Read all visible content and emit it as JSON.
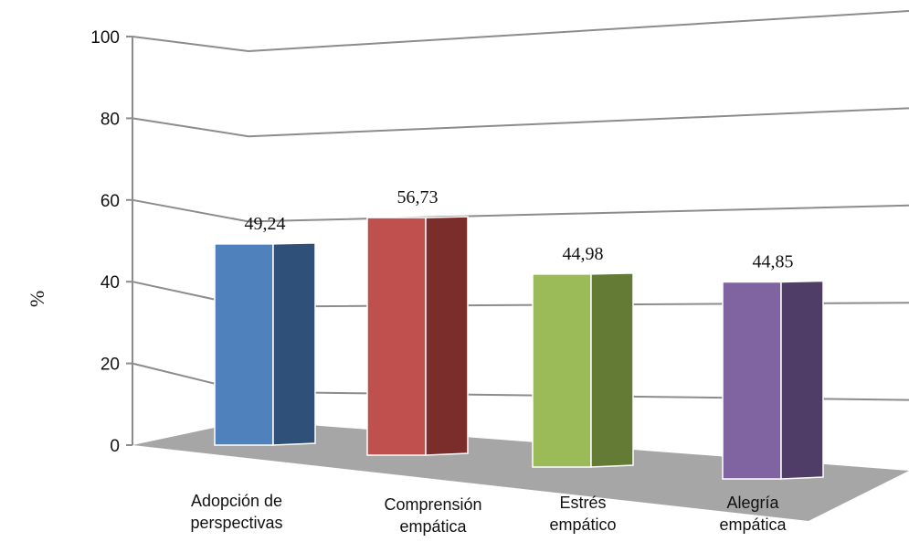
{
  "chart_data": {
    "type": "bar",
    "title": "",
    "ylabel": "%",
    "xlabel": "",
    "ylim": [
      0,
      100
    ],
    "yticks": [
      0,
      20,
      40,
      60,
      80,
      100
    ],
    "grid": true,
    "categories": [
      [
        "Adopción de",
        "perspectivas"
      ],
      [
        "Comprensión",
        "empática"
      ],
      [
        "Estrés",
        "empático"
      ],
      [
        "Alegría",
        "empática"
      ]
    ],
    "values": [
      49.24,
      56.73,
      44.98,
      44.85
    ],
    "value_labels": [
      "49,24",
      "56,73",
      "44,98",
      "44,85"
    ],
    "colors": [
      {
        "front": "#4f81bd",
        "side": "#2f5079"
      },
      {
        "front": "#c0504d",
        "side": "#7b2d2c"
      },
      {
        "front": "#9bbb59",
        "side": "#647b36"
      },
      {
        "front": "#8064a2",
        "side": "#4f3d68"
      }
    ],
    "floor_color": "#a6a6a6",
    "grid_color": "#8c8c8c"
  }
}
